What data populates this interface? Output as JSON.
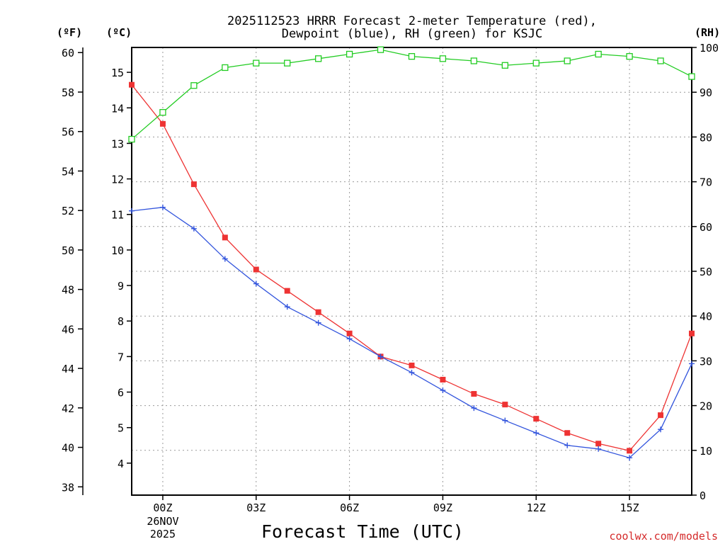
{
  "chart_data": {
    "type": "line",
    "title": "2025112523 HRRR Forecast 2-meter Temperature (red),",
    "subtitle": "Dewpoint (blue), RH (green) for KSJC",
    "xlabel": "Forecast Time (UTC)",
    "credit": "coolwx.com/models",
    "units": {
      "fahrenheit": "(ºF)",
      "celsius": "(ºC)",
      "rh": "(RH)"
    },
    "x_ticks": [
      {
        "hour": 0,
        "label": "00Z",
        "sub1": "26NOV",
        "sub2": "2025"
      },
      {
        "hour": 3,
        "label": "03Z",
        "sub1": "",
        "sub2": ""
      },
      {
        "hour": 6,
        "label": "06Z",
        "sub1": "",
        "sub2": ""
      },
      {
        "hour": 9,
        "label": "09Z",
        "sub1": "",
        "sub2": ""
      },
      {
        "hour": 12,
        "label": "12Z",
        "sub1": "",
        "sub2": ""
      },
      {
        "hour": 15,
        "label": "15Z",
        "sub1": "",
        "sub2": ""
      }
    ],
    "xlim": [
      -1,
      17
    ],
    "celsius_axis": {
      "ylim": [
        3.1,
        15.7
      ],
      "ticks": [
        4,
        5,
        6,
        7,
        8,
        9,
        10,
        11,
        12,
        13,
        14,
        15
      ]
    },
    "fahrenheit_axis": {
      "ticks": [
        38,
        40,
        42,
        44,
        46,
        48,
        50,
        52,
        54,
        56,
        58,
        60
      ]
    },
    "rh_axis": {
      "ylim": [
        0,
        100
      ],
      "ticks": [
        0,
        10,
        20,
        30,
        40,
        50,
        60,
        70,
        80,
        90,
        100
      ]
    },
    "grid": true,
    "x": [
      -1,
      0,
      1,
      2,
      3,
      4,
      5,
      6,
      7,
      8,
      9,
      10,
      11,
      12,
      13,
      14,
      15,
      16,
      17
    ],
    "series": [
      {
        "name": "Temperature",
        "axis": "celsius",
        "color": "#ee3333",
        "marker": "filled-square",
        "values": [
          14.65,
          13.55,
          11.85,
          10.35,
          9.45,
          8.85,
          8.25,
          7.65,
          7.0,
          6.75,
          6.35,
          5.95,
          5.65,
          5.25,
          4.85,
          4.55,
          4.35,
          5.35,
          7.65
        ]
      },
      {
        "name": "Dewpoint",
        "axis": "celsius",
        "color": "#3355dd",
        "marker": "plus",
        "values": [
          11.1,
          11.2,
          10.6,
          9.75,
          9.05,
          8.4,
          7.95,
          7.5,
          7.0,
          6.55,
          6.05,
          5.55,
          5.2,
          4.85,
          4.5,
          4.4,
          4.15,
          4.95,
          6.8
        ]
      },
      {
        "name": "RH",
        "axis": "rh",
        "color": "#22cc22",
        "marker": "open-square",
        "values": [
          79.5,
          85.5,
          91.5,
          95.5,
          96.5,
          96.5,
          97.5,
          98.5,
          99.5,
          98.0,
          97.5,
          97.0,
          96.0,
          96.5,
          97.0,
          98.5,
          98.0,
          97.0,
          93.5
        ]
      }
    ]
  }
}
